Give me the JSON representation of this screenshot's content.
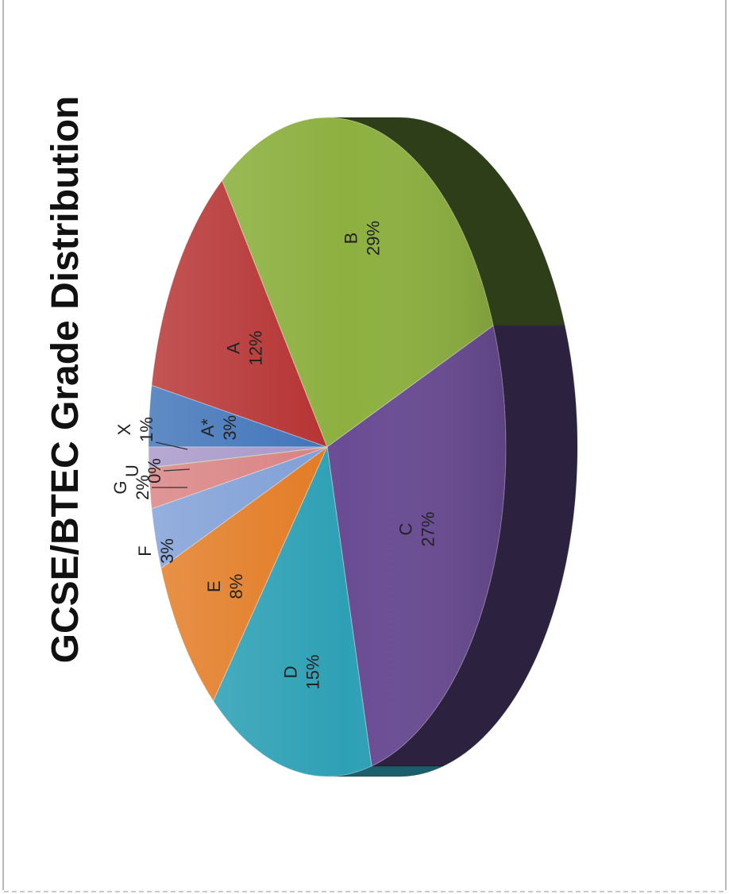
{
  "chart_data": {
    "type": "pie",
    "title": "GCSE/BTEC Grade Distribution",
    "categories": [
      "A*",
      "A",
      "B",
      "C",
      "D",
      "E",
      "F",
      "G",
      "U",
      "X"
    ],
    "values": [
      3,
      12,
      29,
      27,
      15,
      8,
      3,
      2,
      0,
      1
    ],
    "labels": [
      "3%",
      "12%",
      "29%",
      "27%",
      "15%",
      "8%",
      "3%",
      "2%",
      "0%",
      "1%"
    ],
    "colors": [
      "#3d72b8",
      "#b53030",
      "#8db040",
      "#6a4c94",
      "#2ea0b5",
      "#e27a22",
      "#7e9ed6",
      "#d98080",
      "#b8cc80",
      "#a696c8"
    ],
    "side_colors": [
      "#22446e",
      "#6a1c1c",
      "#2e3e18",
      "#2d2140",
      "#1b5f6c",
      "#85480f",
      "#4a5e80",
      "#824c4c",
      "#6e7a4c",
      "#5e5474"
    ],
    "legend": "none"
  }
}
